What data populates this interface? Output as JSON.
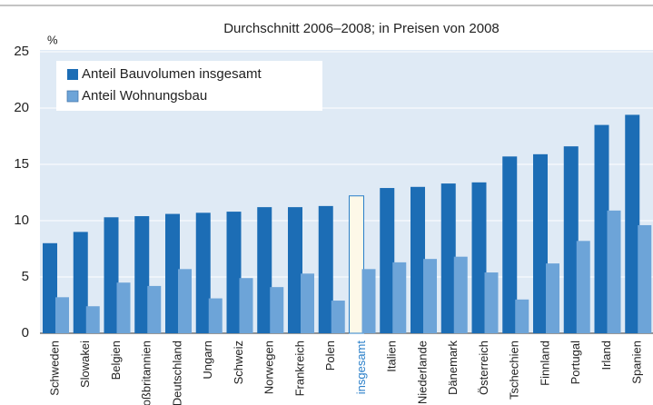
{
  "chart_data": {
    "type": "bar",
    "title": "Durchschnitt 2006–2008; in Preisen von 2008",
    "y_label": "%",
    "categories": [
      "Schweden",
      "Slowakei",
      "Belgien",
      "Großbritannien",
      "Deutschland",
      "Ungarn",
      "Schweiz",
      "Norwegen",
      "Frankreich",
      "Polen",
      "insgesamt",
      "Italien",
      "Niederlande",
      "Dänemark",
      "Österreich",
      "Tschechien",
      "Finnland",
      "Portugal",
      "Irland",
      "Spanien"
    ],
    "series": [
      {
        "name": "Anteil Bauvolumen insgesamt",
        "color": "#1c6db5",
        "values": [
          8.0,
          9.0,
          10.3,
          10.4,
          10.6,
          10.7,
          10.8,
          11.2,
          11.2,
          11.3,
          12.2,
          12.9,
          13.0,
          13.3,
          13.4,
          15.7,
          15.9,
          16.6,
          18.5,
          19.4
        ]
      },
      {
        "name": "Anteil Wohnungsbau",
        "color": "#6da4d8",
        "values": [
          3.2,
          2.4,
          4.5,
          4.2,
          5.7,
          3.1,
          4.9,
          4.1,
          5.3,
          2.9,
          5.7,
          6.3,
          6.6,
          6.8,
          5.4,
          3.0,
          6.2,
          8.2,
          10.9,
          9.6
        ]
      }
    ],
    "highlight_category": "insgesamt",
    "highlight_color": "#2a7fc9",
    "highlight_fill": "#fdf8e8",
    "ylim": [
      0,
      25
    ],
    "yticks": [
      0,
      5,
      10,
      15,
      20,
      25
    ],
    "grid": true,
    "legend": "upper left"
  }
}
